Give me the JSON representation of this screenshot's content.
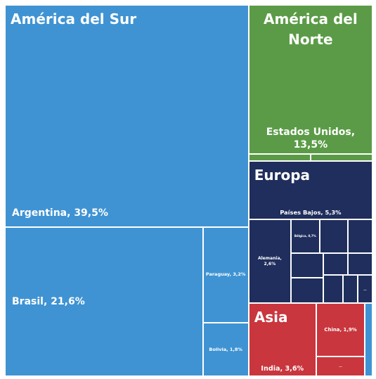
{
  "chart_data": {
    "type": "treemap",
    "groups": [
      {
        "name": "América del Sur",
        "color": "#3f93d3",
        "children": [
          {
            "label": "Argentina, 39,5%",
            "value": 39.5
          },
          {
            "label": "Brasil, 21,6%",
            "value": 21.6
          },
          {
            "label": "Paraguay, 3,2%",
            "value": 3.2
          },
          {
            "label": "Bolivia, 1,8%",
            "value": 1.8
          }
        ]
      },
      {
        "name": "América del Norte",
        "color": "#5b9b47",
        "children": [
          {
            "label": "Estados Unidos, 13,5%",
            "value": 13.5
          },
          {
            "label": null,
            "value": 0.3
          },
          {
            "label": null,
            "value": 0.3
          }
        ]
      },
      {
        "name": "Europa",
        "color": "#1f2e5c",
        "children": [
          {
            "label": "Países Bajos, 5,3%",
            "value": 5.3
          },
          {
            "label": "Alemania, 2,6%",
            "value": 2.6
          },
          {
            "label": "Bélgica, 0,7%",
            "value": 0.7
          },
          {
            "label": null,
            "value": 0.7
          },
          {
            "label": null,
            "value": 0.6
          },
          {
            "label": null,
            "value": 0.6
          },
          {
            "label": null,
            "value": 0.6
          },
          {
            "label": null,
            "value": 0.4
          },
          {
            "label": null,
            "value": 0.4
          },
          {
            "label": null,
            "value": 0.4
          },
          {
            "label": null,
            "value": 0.3
          },
          {
            "label": "...",
            "value": 0.3
          }
        ]
      },
      {
        "name": "Asia",
        "color": "#c9363e",
        "children": [
          {
            "label": "India, 3,6%",
            "value": 3.6
          },
          {
            "label": "China, 1,9%",
            "value": 1.9
          },
          {
            "label": "...",
            "value": 0.7
          }
        ]
      },
      {
        "name": null,
        "color": "#3f93d3",
        "children": [
          {
            "label": null,
            "value": 0.4
          }
        ]
      }
    ]
  }
}
